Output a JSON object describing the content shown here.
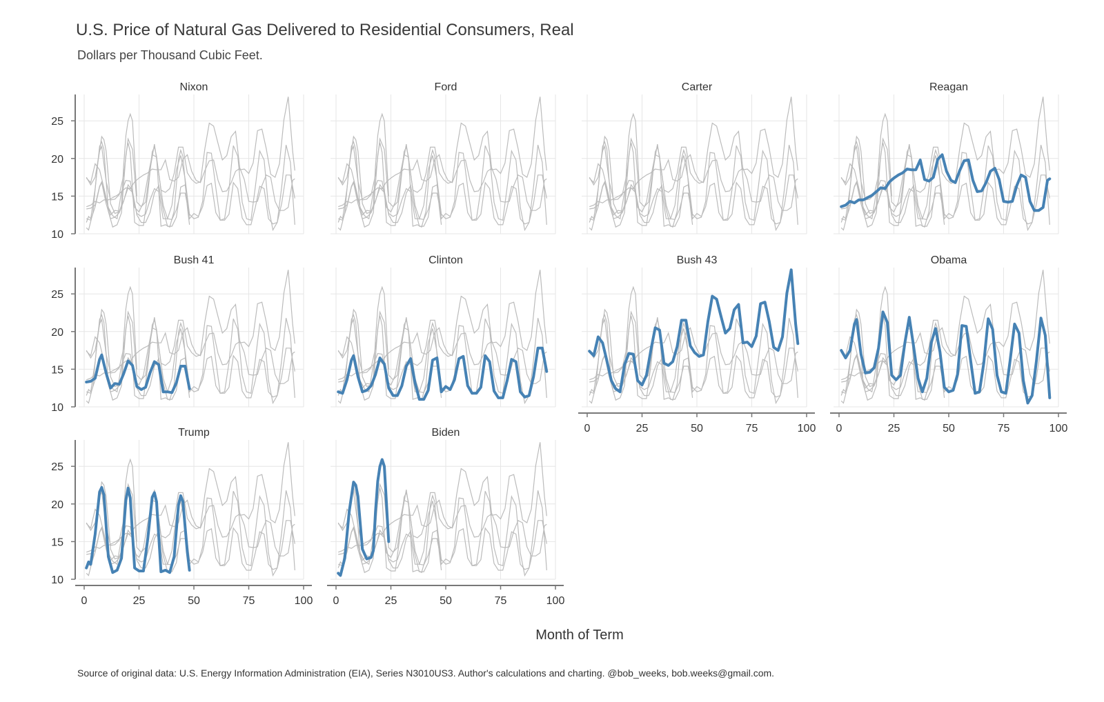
{
  "title": "U.S. Price of Natural Gas Delivered to Residential Consumers, Real",
  "subtitle": "Dollars per Thousand Cubic Feet.",
  "caption": "Source of original data: U.S. Energy Information Administration (EIA), Series N3010US3. Author's calculations and charting. @bob_weeks, bob.weeks@gmail.com.",
  "colors": {
    "highlight": "#4682b4",
    "background_series": "#bbbbbb",
    "grid": "#e6e6e6",
    "axis": "#777777"
  },
  "chart_data": {
    "type": "line",
    "facet_layout": "4 columns, 3 rows",
    "xlabel": "Month of Term",
    "ylabel": "",
    "xlim": [
      0,
      100
    ],
    "ylim": [
      10,
      28.5
    ],
    "x_ticks": [
      0,
      25,
      50,
      75,
      100
    ],
    "y_ticks": [
      10,
      15,
      20,
      25
    ],
    "grid": true,
    "facets": [
      "Nixon",
      "Ford",
      "Carter",
      "Reagan",
      "Bush 41",
      "Clinton",
      "Bush 43",
      "Obama",
      "Trump",
      "Biden"
    ],
    "series": [
      {
        "name": "Reagan",
        "x": [
          1,
          3,
          5,
          7,
          9,
          11,
          13,
          15,
          17,
          19,
          21,
          23,
          25,
          27,
          29,
          31,
          33,
          35,
          37,
          39,
          41,
          43,
          45,
          47,
          49,
          51,
          53,
          55,
          57,
          59,
          61,
          63,
          65,
          67,
          69,
          71,
          73,
          75,
          77,
          79,
          81,
          83,
          85,
          87,
          89,
          91,
          93,
          95,
          96
        ],
        "y": [
          13.6,
          13.8,
          14.3,
          14.1,
          14.5,
          14.5,
          14.8,
          15.1,
          15.6,
          16.1,
          16.0,
          16.9,
          17.4,
          17.8,
          18.1,
          18.6,
          18.5,
          18.5,
          19.8,
          17.2,
          17.0,
          17.5,
          19.9,
          20.5,
          18.3,
          17.1,
          16.8,
          18.4,
          19.7,
          19.8,
          17.1,
          15.6,
          15.7,
          16.8,
          18.3,
          18.7,
          17.2,
          14.3,
          14.2,
          14.3,
          16.4,
          17.8,
          17.5,
          14.3,
          13.1,
          13.1,
          13.5,
          17.1,
          17.3
        ]
      },
      {
        "name": "Bush 41",
        "x": [
          1,
          3,
          5,
          7,
          8,
          10,
          12,
          14,
          16,
          18,
          20,
          22,
          24,
          26,
          28,
          30,
          32,
          34,
          36,
          38,
          40,
          42,
          44,
          46,
          48
        ],
        "y": [
          13.3,
          13.4,
          13.8,
          16.3,
          16.9,
          14.5,
          12.5,
          13.1,
          13.0,
          14.4,
          16.1,
          15.5,
          12.7,
          12.3,
          12.6,
          14.5,
          16.0,
          15.6,
          12.0,
          12.0,
          11.9,
          13.2,
          15.4,
          15.4,
          12.4
        ]
      },
      {
        "name": "Clinton",
        "x": [
          1,
          3,
          5,
          7,
          8,
          10,
          12,
          14,
          16,
          18,
          20,
          22,
          24,
          26,
          28,
          30,
          32,
          34,
          36,
          38,
          40,
          42,
          44,
          46,
          48,
          50,
          52,
          54,
          56,
          58,
          60,
          62,
          64,
          66,
          68,
          70,
          72,
          74,
          76,
          78,
          80,
          82,
          84,
          86,
          88,
          90,
          92,
          94,
          96
        ],
        "y": [
          12.0,
          11.8,
          13.6,
          16.2,
          16.8,
          14.0,
          12.0,
          12.2,
          12.8,
          14.3,
          16.5,
          15.7,
          12.5,
          11.5,
          11.5,
          12.8,
          15.4,
          16.4,
          13.2,
          11.0,
          11.0,
          12.2,
          16.2,
          16.5,
          12.0,
          12.7,
          12.3,
          13.6,
          16.4,
          16.7,
          12.8,
          11.8,
          11.8,
          12.6,
          16.8,
          16.0,
          12.1,
          11.2,
          11.2,
          13.5,
          16.3,
          16.0,
          12.0,
          11.3,
          11.5,
          14.0,
          17.8,
          17.8,
          14.7
        ]
      },
      {
        "name": "Bush 43",
        "x": [
          1,
          3,
          5,
          7,
          9,
          11,
          13,
          15,
          17,
          19,
          21,
          23,
          25,
          27,
          29,
          31,
          33,
          35,
          37,
          39,
          41,
          43,
          45,
          47,
          49,
          51,
          53,
          55,
          57,
          59,
          61,
          63,
          65,
          67,
          69,
          71,
          73,
          75,
          77,
          79,
          81,
          83,
          85,
          87,
          89,
          91,
          93,
          95,
          96
        ],
        "y": [
          17.4,
          16.8,
          19.3,
          18.5,
          16.1,
          13.5,
          12.4,
          12.0,
          15.6,
          17.1,
          17.0,
          13.5,
          12.9,
          14.2,
          17.5,
          20.5,
          20.2,
          15.8,
          15.5,
          16.0,
          18.0,
          21.5,
          21.5,
          18.1,
          17.2,
          16.7,
          16.9,
          21.3,
          24.7,
          24.3,
          22.0,
          19.8,
          20.4,
          22.9,
          23.6,
          18.5,
          18.6,
          18.0,
          19.4,
          23.7,
          23.9,
          21.3,
          17.9,
          17.5,
          19.3,
          25.1,
          28.2,
          21.0,
          18.4
        ]
      },
      {
        "name": "Obama",
        "x": [
          1,
          3,
          5,
          7,
          8,
          10,
          12,
          14,
          16,
          18,
          20,
          22,
          24,
          26,
          28,
          30,
          32,
          34,
          36,
          38,
          40,
          42,
          44,
          46,
          48,
          50,
          52,
          54,
          56,
          58,
          60,
          62,
          64,
          66,
          68,
          70,
          72,
          74,
          76,
          78,
          80,
          82,
          84,
          86,
          88,
          90,
          92,
          94,
          96
        ],
        "y": [
          17.5,
          16.5,
          17.5,
          21.0,
          21.6,
          17.0,
          14.5,
          14.6,
          15.2,
          17.8,
          22.6,
          21.2,
          14.2,
          13.6,
          14.2,
          18.5,
          21.9,
          18.0,
          13.8,
          12.0,
          13.8,
          18.5,
          20.4,
          17.3,
          12.6,
          12.0,
          12.2,
          14.3,
          20.8,
          20.7,
          16.1,
          11.8,
          12.0,
          15.9,
          21.7,
          20.3,
          14.2,
          12.0,
          11.8,
          16.2,
          21.0,
          19.8,
          13.5,
          10.5,
          11.5,
          16.2,
          21.8,
          19.5,
          11.2
        ]
      },
      {
        "name": "Trump",
        "x": [
          1,
          2,
          3,
          5,
          7,
          8,
          9,
          11,
          13,
          15,
          17,
          19,
          20,
          21,
          23,
          25,
          27,
          29,
          31,
          32,
          33,
          35,
          37,
          39,
          41,
          43,
          44,
          45,
          47,
          48
        ],
        "y": [
          11.5,
          12.3,
          12.0,
          16.0,
          21.6,
          22.2,
          21.2,
          13.0,
          10.9,
          11.2,
          12.8,
          20.5,
          22.1,
          20.8,
          11.5,
          11.1,
          11.1,
          15.4,
          20.9,
          21.5,
          20.3,
          11.0,
          11.2,
          10.9,
          13.0,
          19.9,
          21.1,
          20.3,
          13.6,
          11.2
        ]
      },
      {
        "name": "Biden",
        "x": [
          1,
          2,
          4,
          6,
          8,
          9,
          10,
          12,
          14,
          16,
          17,
          18,
          19,
          20,
          21,
          22,
          24
        ],
        "y": [
          10.8,
          10.5,
          12.8,
          19.0,
          22.9,
          22.5,
          21.0,
          14.0,
          12.7,
          12.9,
          13.8,
          19.0,
          23.0,
          25.0,
          25.9,
          25.0,
          15.0
        ]
      },
      {
        "name": "Nixon",
        "x": [
          1,
          5,
          10,
          15,
          20,
          25,
          30,
          35,
          40,
          45,
          48
        ],
        "y": [
          12.0,
          12.1,
          12.4,
          12.4,
          12.5,
          12.6,
          12.5,
          12.5,
          12.3,
          12.4,
          12.5
        ]
      },
      {
        "name": "Ford",
        "x": [
          1,
          5,
          10,
          15,
          20,
          25,
          30
        ],
        "y": [
          13.0,
          12.9,
          13.2,
          13.4,
          13.5,
          13.8,
          14.0
        ]
      },
      {
        "name": "Carter",
        "x": [
          1,
          6,
          12,
          18,
          24,
          30,
          36,
          42,
          48
        ],
        "y": [
          14.0,
          14.3,
          14.6,
          15.0,
          15.5,
          16.0,
          16.6,
          17.2,
          17.5
        ]
      }
    ]
  }
}
